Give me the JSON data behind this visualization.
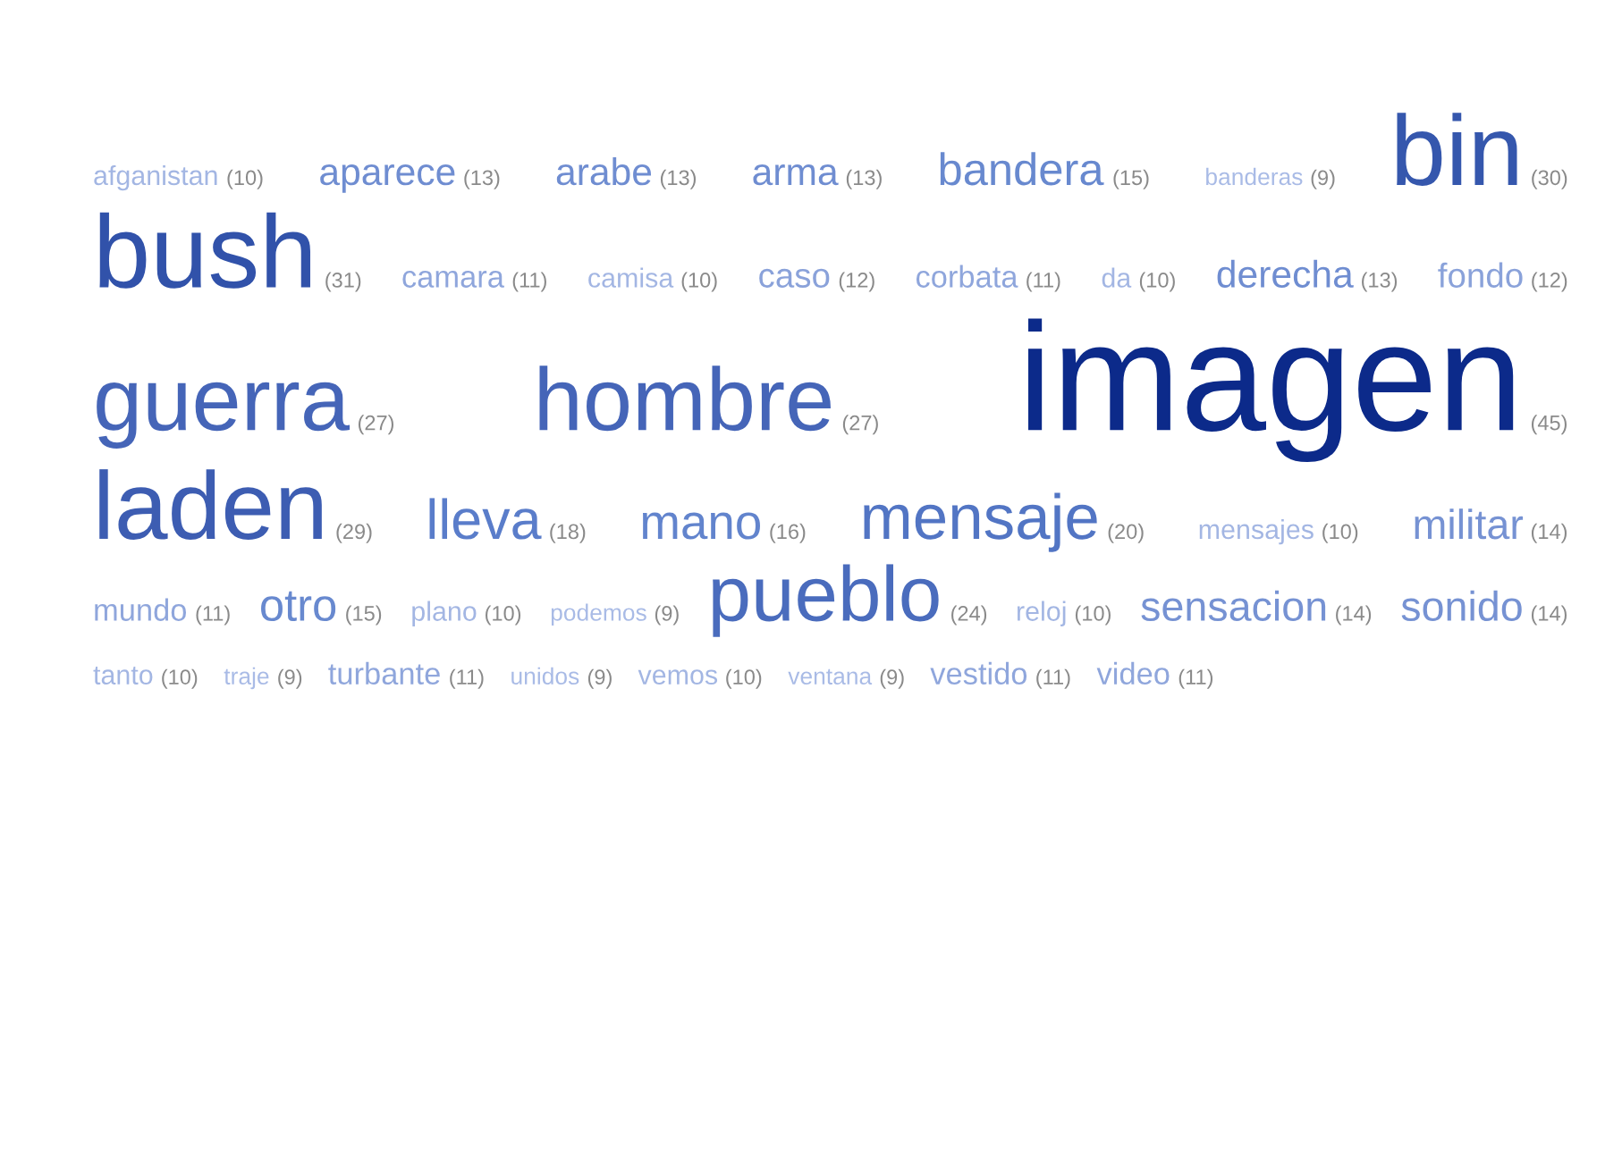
{
  "chart_data": {
    "type": "other",
    "categories": [
      "afganistan",
      "aparece",
      "arabe",
      "arma",
      "bandera",
      "banderas",
      "bin",
      "bush",
      "camara",
      "camisa",
      "caso",
      "corbata",
      "da",
      "derecha",
      "fondo",
      "guerra",
      "hombre",
      "imagen",
      "laden",
      "lleva",
      "mano",
      "mensaje",
      "mensajes",
      "militar",
      "mundo",
      "otro",
      "plano",
      "podemos",
      "pueblo",
      "reloj",
      "sensacion",
      "sonido",
      "tanto",
      "traje",
      "turbante",
      "unidos",
      "vemos",
      "ventana",
      "vestido",
      "video"
    ],
    "values": [
      10,
      13,
      13,
      13,
      15,
      9,
      30,
      31,
      11,
      10,
      12,
      11,
      10,
      13,
      12,
      27,
      27,
      45,
      29,
      18,
      16,
      20,
      10,
      14,
      11,
      15,
      10,
      9,
      24,
      10,
      14,
      14,
      10,
      9,
      11,
      9,
      10,
      9,
      11,
      11
    ],
    "value_labels": [
      "(10)",
      "(13)",
      "(13)",
      "(13)",
      "(15)",
      "(9)",
      "(30)",
      "(31)",
      "(11)",
      "(10)",
      "(12)",
      "(11)",
      "(10)",
      "(13)",
      "(12)",
      "(27)",
      "(27)",
      "(45)",
      "(29)",
      "(18)",
      "(16)",
      "(20)",
      "(10)",
      "(14)",
      "(11)",
      "(15)",
      "(10)",
      "(9)",
      "(24)",
      "(10)",
      "(14)",
      "(14)",
      "(10)",
      "(9)",
      "(11)",
      "(9)",
      "(10)",
      "(9)",
      "(11)",
      "(11)"
    ],
    "colors": [
      "#a3b6e3",
      "#6f8dd1",
      "#6f8dd1",
      "#6f8dd1",
      "#6889cf",
      "#a9bbe6",
      "#3557ad",
      "#3152aa",
      "#8fa6dc",
      "#a3b6e3",
      "#8aa2da",
      "#8fa6dc",
      "#a3b6e3",
      "#6f8dd1",
      "#8aa2da",
      "#4565b8",
      "#4565b8",
      "#0c2a8a",
      "#3d5db2",
      "#5a7dca",
      "#6284cd",
      "#5275c4",
      "#a3b6e3",
      "#7692d3",
      "#8fa6dc",
      "#6889cf",
      "#a3b6e3",
      "#a9bbe6",
      "#4a6cbd",
      "#a3b6e3",
      "#7692d3",
      "#7692d3",
      "#a3b6e3",
      "#a9bbe6",
      "#8fa6dc",
      "#a9bbe6",
      "#a3b6e3",
      "#a9bbe6",
      "#8fa6dc",
      "#8fa6dc"
    ]
  }
}
